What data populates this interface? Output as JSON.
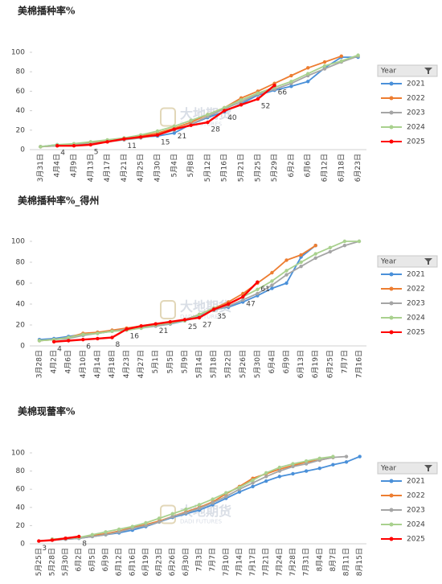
{
  "chart_data": [
    {
      "type": "line",
      "title": "美棉播种率%",
      "legend_title": "Year",
      "watermark": "大地期货",
      "watermark_sub": "DADI FUTURES",
      "categories": [
        "3月31日",
        "4月4日",
        "4月9日",
        "4月13日",
        "4月17日",
        "4月21日",
        "4月25日",
        "4月30日",
        "5月4日",
        "5月8日",
        "5月12日",
        "5月16日",
        "5月21日",
        "5月25日",
        "5月29日",
        "6月2日",
        "6月6日",
        "6月12日",
        "6月18日",
        "6月23日"
      ],
      "ylim": [
        0,
        100
      ],
      "yticks": [
        0,
        20,
        40,
        60,
        80,
        100
      ],
      "series": [
        {
          "name": "2021",
          "color": "#4a90d9",
          "values": [
            3,
            5,
            5,
            7,
            9,
            11,
            13,
            14,
            17,
            26,
            33,
            39,
            47,
            56,
            61,
            65,
            70,
            84,
            95,
            95
          ]
        },
        {
          "name": "2022",
          "color": "#ed7d31",
          "values": [
            3,
            4,
            5,
            7,
            9,
            11,
            14,
            17,
            22,
            28,
            36,
            43,
            53,
            60,
            68,
            76,
            84,
            90,
            96,
            null
          ]
        },
        {
          "name": "2023",
          "color": "#a5a5a5",
          "values": [
            3,
            4,
            5,
            6,
            8,
            10,
            12,
            15,
            20,
            26,
            34,
            42,
            49,
            57,
            62,
            68,
            76,
            83,
            90,
            96
          ]
        },
        {
          "name": "2024",
          "color": "#a9d18e",
          "values": [
            3,
            5,
            6,
            8,
            10,
            12,
            15,
            19,
            24,
            30,
            36,
            43,
            51,
            58,
            64,
            70,
            78,
            86,
            91,
            97
          ]
        },
        {
          "name": "2025",
          "color": "#ff0000",
          "values": [
            null,
            4,
            4,
            5,
            8,
            11,
            13,
            15,
            21,
            25,
            28,
            40,
            46,
            52,
            66,
            null,
            null,
            null,
            null,
            null
          ],
          "value_labels": [
            null,
            "4",
            null,
            "5",
            null,
            "11",
            null,
            "15",
            "21",
            null,
            "28",
            "40",
            null,
            "52",
            "66",
            null,
            null,
            null,
            null,
            null
          ]
        }
      ]
    },
    {
      "type": "line",
      "title": "美棉播种率%_得州",
      "legend_title": "Year",
      "watermark": "大地期货",
      "watermark_sub": "DADI FUTURES",
      "categories": [
        "3月28日",
        "4月2日",
        "4月6日",
        "4月10日",
        "4月14日",
        "4月18日",
        "4月23日",
        "4月27日",
        "5月1日",
        "5月5日",
        "5月9日",
        "5月14日",
        "5月18日",
        "5月22日",
        "5月26日",
        "5月30日",
        "6月4日",
        "6月9日",
        "6月13日",
        "6月19日",
        "6月25日",
        "7月7日",
        "7月16日"
      ],
      "ylim": [
        0,
        100
      ],
      "yticks": [
        0,
        20,
        40,
        60,
        80,
        100
      ],
      "series": [
        {
          "name": "2021",
          "color": "#4a90d9",
          "values": [
            6,
            7,
            9,
            11,
            12,
            14,
            16,
            18,
            19,
            21,
            24,
            28,
            35,
            37,
            42,
            48,
            55,
            60,
            85,
            96,
            null,
            null,
            null
          ]
        },
        {
          "name": "2022",
          "color": "#ed7d31",
          "values": [
            5,
            6,
            8,
            12,
            13,
            15,
            17,
            19,
            21,
            22,
            25,
            30,
            36,
            42,
            50,
            60,
            70,
            82,
            87,
            96,
            null,
            null,
            null
          ]
        },
        {
          "name": "2023",
          "color": "#a5a5a5",
          "values": [
            5,
            6,
            7,
            10,
            12,
            14,
            16,
            17,
            19,
            21,
            25,
            30,
            34,
            38,
            44,
            50,
            58,
            68,
            76,
            84,
            90,
            96,
            100
          ]
        },
        {
          "name": "2024",
          "color": "#a9d18e",
          "values": [
            5,
            6,
            8,
            11,
            12,
            14,
            15,
            17,
            20,
            22,
            24,
            30,
            36,
            40,
            47,
            54,
            62,
            72,
            80,
            88,
            94,
            100,
            100
          ]
        },
        {
          "name": "2025",
          "color": "#ff0000",
          "values": [
            null,
            4,
            5,
            6,
            7,
            8,
            16,
            19,
            21,
            23,
            25,
            27,
            35,
            40,
            47,
            61,
            null,
            null,
            null,
            null,
            null,
            null,
            null
          ],
          "value_labels": [
            null,
            "4",
            null,
            "6",
            null,
            "8",
            "16",
            null,
            "21",
            null,
            "25",
            "27",
            "35",
            null,
            "47",
            "61",
            null,
            null,
            null,
            null,
            null,
            null,
            null
          ]
        }
      ]
    },
    {
      "type": "line",
      "title": "美棉现蕾率%",
      "legend_title": "Year",
      "watermark": "大地期货",
      "watermark_sub": "DADI FUTURES",
      "categories": [
        "5月25日",
        "5月28日",
        "5月30日",
        "6月2日",
        "6月5日",
        "6月9日",
        "6月12日",
        "6月16日",
        "6月19日",
        "6月23日",
        "6月26日",
        "6月30日",
        "7月3日",
        "7月7日",
        "7月10日",
        "7月14日",
        "7月17日",
        "7月21日",
        "7月24日",
        "7月28日",
        "7月31日",
        "8月4日",
        "8月7日",
        "8月11日",
        "8月15日"
      ],
      "ylim": [
        0,
        100
      ],
      "yticks": [
        0,
        20,
        40,
        60,
        80,
        100
      ],
      "series": [
        {
          "name": "2021",
          "color": "#4a90d9",
          "values": [
            null,
            4,
            5,
            6,
            8,
            10,
            12,
            15,
            19,
            24,
            29,
            33,
            37,
            43,
            50,
            57,
            63,
            69,
            74,
            77,
            80,
            83,
            87,
            90,
            96
          ]
        },
        {
          "name": "2022",
          "color": "#ed7d31",
          "values": [
            null,
            5,
            6,
            7,
            9,
            11,
            14,
            18,
            21,
            25,
            30,
            35,
            40,
            46,
            55,
            63,
            72,
            77,
            82,
            86,
            90,
            92,
            95,
            null,
            null
          ]
        },
        {
          "name": "2023",
          "color": "#a5a5a5",
          "values": [
            null,
            4,
            5,
            6,
            8,
            10,
            13,
            17,
            20,
            24,
            30,
            34,
            39,
            45,
            52,
            60,
            67,
            74,
            80,
            85,
            88,
            92,
            95,
            96,
            null
          ]
        },
        {
          "name": "2024",
          "color": "#a9d18e",
          "values": [
            null,
            5,
            6,
            7,
            10,
            13,
            16,
            19,
            23,
            28,
            33,
            38,
            43,
            49,
            56,
            62,
            70,
            78,
            84,
            88,
            91,
            94,
            96,
            null,
            null
          ]
        },
        {
          "name": "2025",
          "color": "#ff0000",
          "values": [
            3,
            4,
            6,
            8,
            null,
            null,
            null,
            null,
            null,
            null,
            null,
            null,
            null,
            null,
            null,
            null,
            null,
            null,
            null,
            null,
            null,
            null,
            null,
            null,
            null
          ],
          "value_labels": [
            "3",
            null,
            null,
            "8",
            null,
            null,
            null,
            null,
            null,
            null,
            null,
            null,
            null,
            null,
            null,
            null,
            null,
            null,
            null,
            null,
            null,
            null,
            null,
            null,
            null
          ]
        }
      ]
    }
  ]
}
